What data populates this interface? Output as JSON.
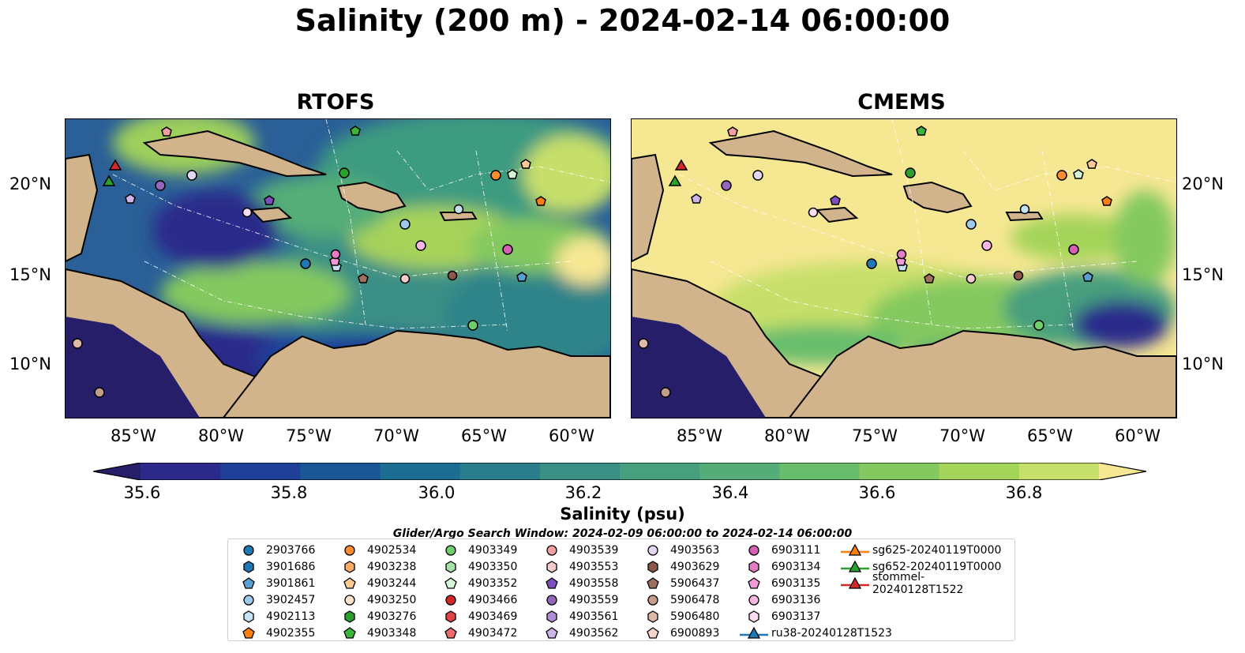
{
  "title": "Salinity (200 m) - 2024-02-14 06:00:00",
  "panels": [
    {
      "title": "RTOFS"
    },
    {
      "title": "CMEMS"
    }
  ],
  "lon_ticks": [
    "85°W",
    "80°W",
    "75°W",
    "70°W",
    "65°W",
    "60°W"
  ],
  "lat_ticks": [
    "20°N",
    "15°N",
    "10°N"
  ],
  "colorbar": {
    "label": "Salinity (psu)",
    "ticks": [
      "35.6",
      "35.8",
      "36.0",
      "36.2",
      "36.4",
      "36.6",
      "36.8"
    ],
    "range": [
      35.5,
      36.9
    ],
    "colors": [
      "#271e6a",
      "#2b2a8a",
      "#1f3f98",
      "#1a5696",
      "#1c6d92",
      "#2a7e8c",
      "#3a8f85",
      "#479f7e",
      "#54ad78",
      "#68bd6c",
      "#84c95f",
      "#a5d45a",
      "#c7df6b",
      "#f6e793"
    ]
  },
  "search_window": "Glider/Argo Search Window: 2024-02-09 06:00:00 to 2024-02-14 06:00:00",
  "legend": [
    {
      "label": "2903766",
      "marker": "circle",
      "color": "#1f77b4"
    },
    {
      "label": "3901686",
      "marker": "hexagon",
      "color": "#1f77b4"
    },
    {
      "label": "3901861",
      "marker": "pentagon",
      "color": "#5a9fd1"
    },
    {
      "label": "3902457",
      "marker": "circle",
      "color": "#9ecae9"
    },
    {
      "label": "4902113",
      "marker": "hexagon",
      "color": "#c6e2f5"
    },
    {
      "label": "4902355",
      "marker": "pentagon",
      "color": "#ff7f0e"
    },
    {
      "label": "4902534",
      "marker": "circle",
      "color": "#ff8c2e"
    },
    {
      "label": "4903238",
      "marker": "hexagon",
      "color": "#ffad66"
    },
    {
      "label": "4903244",
      "marker": "pentagon",
      "color": "#ffc994"
    },
    {
      "label": "4903250",
      "marker": "circle",
      "color": "#ffe3c6"
    },
    {
      "label": "4903276",
      "marker": "hexagon",
      "color": "#2ca02c"
    },
    {
      "label": "4903348",
      "marker": "pentagon",
      "color": "#3cb43c"
    },
    {
      "label": "4903349",
      "marker": "circle",
      "color": "#6fcf6f"
    },
    {
      "label": "4903350",
      "marker": "hexagon",
      "color": "#a6e3a6"
    },
    {
      "label": "4903352",
      "marker": "pentagon",
      "color": "#d5f5d5"
    },
    {
      "label": "4903466",
      "marker": "circle",
      "color": "#d62728"
    },
    {
      "label": "4903469",
      "marker": "hexagon",
      "color": "#e04444"
    },
    {
      "label": "4903472",
      "marker": "pentagon",
      "color": "#ec6a6a"
    },
    {
      "label": "4903539",
      "marker": "circle",
      "color": "#f4a0a0"
    },
    {
      "label": "4903553",
      "marker": "hexagon",
      "color": "#f9cccc"
    },
    {
      "label": "4903558",
      "marker": "pentagon",
      "color": "#7f4fbf"
    },
    {
      "label": "4903559",
      "marker": "circle",
      "color": "#9467bd"
    },
    {
      "label": "4903561",
      "marker": "hexagon",
      "color": "#b08fd8"
    },
    {
      "label": "4903562",
      "marker": "pentagon",
      "color": "#cdb5ea"
    },
    {
      "label": "4903563",
      "marker": "circle",
      "color": "#e4d6f5"
    },
    {
      "label": "4903629",
      "marker": "hexagon",
      "color": "#8c564b"
    },
    {
      "label": "5906437",
      "marker": "pentagon",
      "color": "#a0705f"
    },
    {
      "label": "5906478",
      "marker": "circle",
      "color": "#c49c8c"
    },
    {
      "label": "5906480",
      "marker": "hexagon",
      "color": "#e0b8a8"
    },
    {
      "label": "6900893",
      "marker": "pentagon",
      "color": "#f7d7c8"
    },
    {
      "label": "6903111",
      "marker": "circle",
      "color": "#d65fb8"
    },
    {
      "label": "6903134",
      "marker": "hexagon",
      "color": "#e27cc6"
    },
    {
      "label": "6903135",
      "marker": "pentagon",
      "color": "#f09ad8"
    },
    {
      "label": "6903136",
      "marker": "circle",
      "color": "#f7b6e3"
    },
    {
      "label": "6903137",
      "marker": "hexagon",
      "color": "#fbdcf2"
    },
    {
      "label": "ru38-20240128T1523",
      "marker": "triangle-line",
      "color": "#1f77b4"
    },
    {
      "label": "sg625-20240119T0000",
      "marker": "triangle-line",
      "color": "#ff7f0e"
    },
    {
      "label": "sg652-20240119T0000",
      "marker": "triangle-line",
      "color": "#2ca02c"
    },
    {
      "label": "stommel-20240128T1522",
      "marker": "triangle-line",
      "color": "#d62728"
    }
  ]
}
